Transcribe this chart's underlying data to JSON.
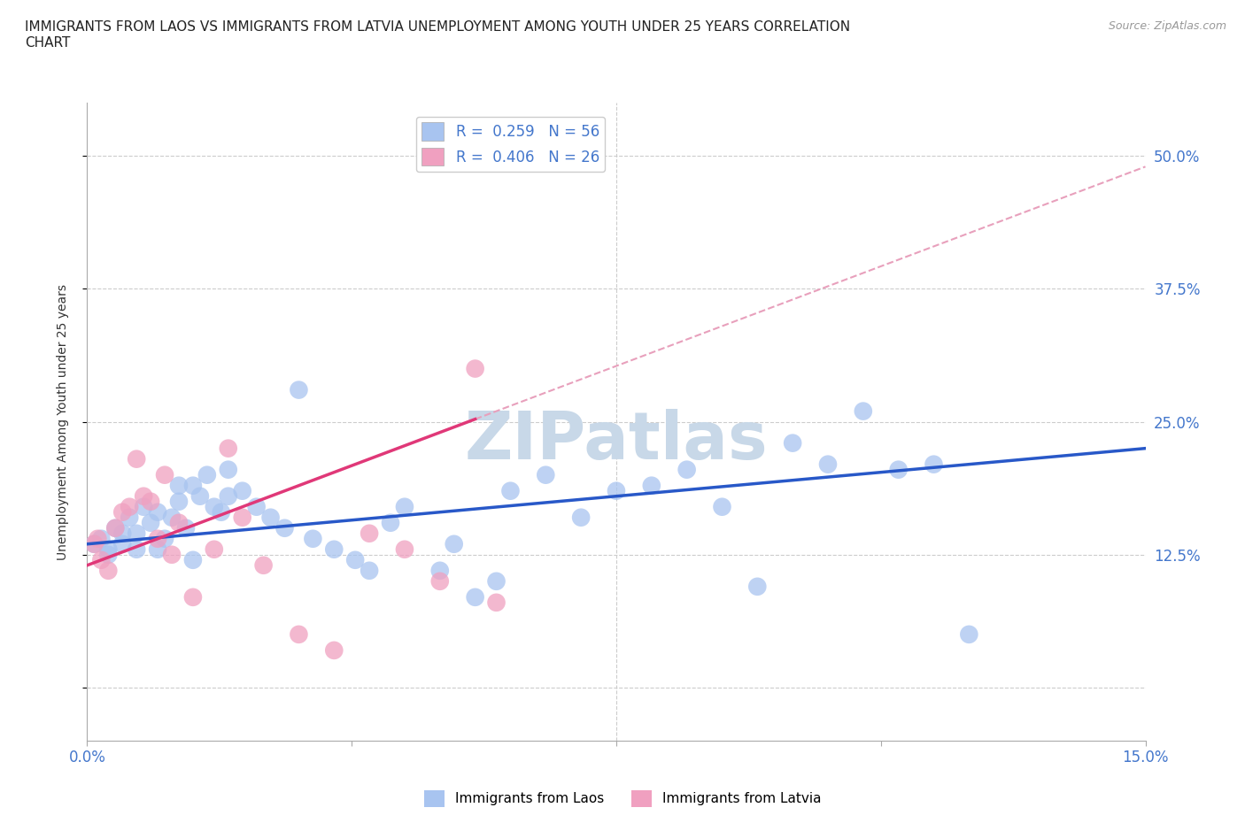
{
  "title": "IMMIGRANTS FROM LAOS VS IMMIGRANTS FROM LATVIA UNEMPLOYMENT AMONG YOUTH UNDER 25 YEARS CORRELATION\nCHART",
  "source": "Source: ZipAtlas.com",
  "ylabel": "Unemployment Among Youth under 25 years",
  "xlim": [
    0.0,
    15.0
  ],
  "ylim": [
    -5.0,
    55.0
  ],
  "yticks": [
    0.0,
    12.5,
    25.0,
    37.5,
    50.0
  ],
  "ytick_labels": [
    "",
    "12.5%",
    "25.0%",
    "37.5%",
    "50.0%"
  ],
  "xticks": [
    0.0,
    3.75,
    7.5,
    11.25,
    15.0
  ],
  "xtick_labels": [
    "0.0%",
    "",
    "",
    "",
    "15.0%"
  ],
  "laos_R": 0.259,
  "laos_N": 56,
  "latvia_R": 0.406,
  "latvia_N": 26,
  "laos_color": "#a8c4f0",
  "latvia_color": "#f0a0c0",
  "laos_line_color": "#2858c8",
  "latvia_line_color": "#e03878",
  "latvia_dash_color": "#e8a0bc",
  "watermark": "ZIPatlas",
  "watermark_color": "#c8d8e8",
  "laos_x": [
    0.1,
    0.2,
    0.3,
    0.4,
    0.5,
    0.6,
    0.7,
    0.8,
    0.9,
    1.0,
    1.1,
    1.2,
    1.3,
    1.4,
    1.5,
    1.6,
    1.7,
    1.8,
    1.9,
    2.0,
    2.2,
    2.4,
    2.6,
    2.8,
    3.0,
    3.2,
    3.5,
    3.8,
    4.0,
    4.3,
    4.5,
    5.0,
    5.2,
    5.5,
    5.8,
    6.0,
    6.5,
    7.0,
    7.5,
    8.0,
    8.5,
    9.0,
    9.5,
    10.0,
    10.5,
    11.0,
    11.5,
    12.0,
    12.5,
    0.3,
    0.5,
    0.7,
    1.0,
    1.3,
    1.5,
    2.0
  ],
  "laos_y": [
    13.5,
    14.0,
    12.5,
    15.0,
    14.5,
    16.0,
    13.0,
    17.0,
    15.5,
    16.5,
    14.0,
    16.0,
    17.5,
    15.0,
    19.0,
    18.0,
    20.0,
    17.0,
    16.5,
    20.5,
    18.5,
    17.0,
    16.0,
    15.0,
    28.0,
    14.0,
    13.0,
    12.0,
    11.0,
    15.5,
    17.0,
    11.0,
    13.5,
    8.5,
    10.0,
    18.5,
    20.0,
    16.0,
    18.5,
    19.0,
    20.5,
    17.0,
    9.5,
    23.0,
    21.0,
    26.0,
    20.5,
    21.0,
    5.0,
    13.0,
    13.5,
    14.5,
    13.0,
    19.0,
    12.0,
    18.0
  ],
  "latvia_x": [
    0.1,
    0.15,
    0.2,
    0.3,
    0.4,
    0.5,
    0.6,
    0.7,
    0.8,
    0.9,
    1.0,
    1.1,
    1.2,
    1.3,
    1.5,
    1.8,
    2.0,
    2.2,
    2.5,
    3.0,
    3.5,
    4.0,
    4.5,
    5.0,
    5.5,
    5.8
  ],
  "latvia_y": [
    13.5,
    14.0,
    12.0,
    11.0,
    15.0,
    16.5,
    17.0,
    21.5,
    18.0,
    17.5,
    14.0,
    20.0,
    12.5,
    15.5,
    8.5,
    13.0,
    22.5,
    16.0,
    11.5,
    5.0,
    3.5,
    14.5,
    13.0,
    10.0,
    30.0,
    8.0
  ],
  "laos_intercept": 13.5,
  "laos_slope": 0.6,
  "latvia_intercept": 11.5,
  "latvia_slope": 2.5
}
